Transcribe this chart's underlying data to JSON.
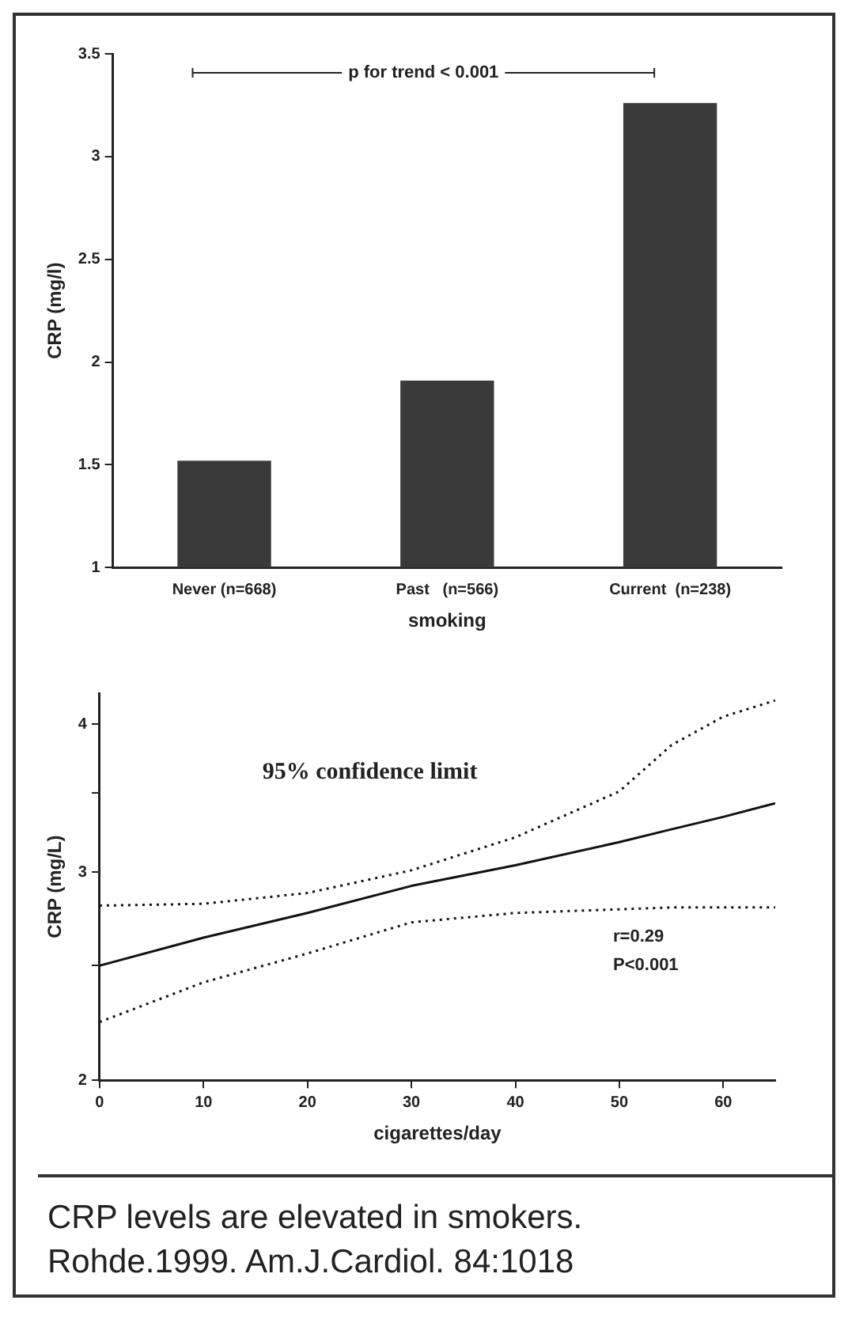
{
  "chart_data": [
    {
      "type": "bar",
      "categories": [
        "Never (n=668)",
        "Past   (n=566)",
        "Current  (n=238)"
      ],
      "values": [
        1.52,
        1.91,
        3.26
      ],
      "color": "#3a3a3a",
      "xlabel": "smoking",
      "ylabel": "CRP (mg/l)",
      "ylim": [
        1,
        3.5
      ],
      "yticks": [
        1,
        1.5,
        2,
        2.5,
        3,
        3.5
      ],
      "grid": false,
      "legend": false,
      "annotations": [
        "p for trend < 0.001"
      ]
    },
    {
      "type": "line",
      "x": [
        0,
        10,
        20,
        30,
        40,
        50,
        55,
        60,
        65
      ],
      "xlabel": "cigarettes/day",
      "ylabel": "CRP (mg/L)",
      "log": "y",
      "xlim": [
        0,
        65
      ],
      "xticks": [
        0,
        10,
        20,
        30,
        40,
        50,
        60
      ],
      "ylim": [
        2,
        4.25
      ],
      "yticks": [
        2,
        {
          "value": 2.5,
          "label": null
        },
        3,
        {
          "value": 3.5,
          "label": null
        },
        4
      ],
      "grid": false,
      "legend": false,
      "marker": "none",
      "series": [
        {
          "color": "#111111",
          "line_style": "solid",
          "values": [
            2.5,
            2.64,
            2.77,
            2.92,
            3.04,
            3.18,
            3.26,
            3.34,
            3.43
          ]
        },
        {
          "color": "#111111",
          "line_style": "dotted",
          "values": [
            2.24,
            2.42,
            2.56,
            2.72,
            2.77,
            2.79,
            2.8,
            2.8,
            2.8
          ]
        },
        {
          "color": "#111111",
          "line_style": "dotted",
          "values": [
            2.81,
            2.82,
            2.88,
            3.01,
            3.21,
            3.51,
            3.84,
            4.06,
            4.19
          ]
        }
      ],
      "annotations": [
        "95% confidence limit",
        "r=0.29",
        "P<0.001",
        "CRP levels are elevated in smokers.",
        "Rohde.1999. Am.J.Cardiol. 84:1018"
      ]
    }
  ]
}
